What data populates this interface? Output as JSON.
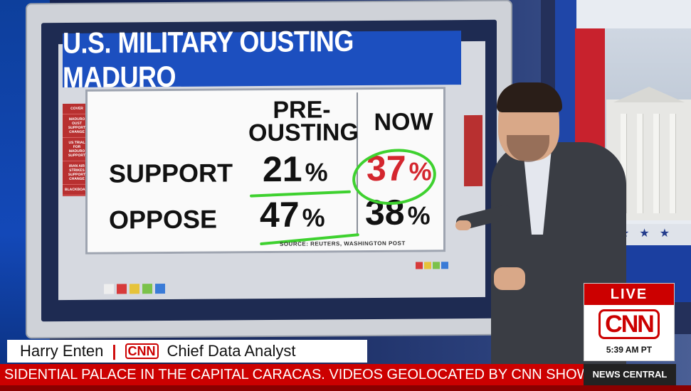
{
  "graphic": {
    "title": "U.S. MILITARY OUSTING MADURO",
    "col_pre_line1": "PRE-",
    "col_pre_line2": "OUSTING",
    "col_now": "NOW",
    "rows": [
      {
        "label": "SUPPORT",
        "pre": "21",
        "now": "37"
      },
      {
        "label": "OPPOSE",
        "pre": "47",
        "now": "38"
      }
    ],
    "pct": "%",
    "source": "SOURCE: REUTERS, WASHINGTON POST",
    "side_items": [
      "COVER",
      "MADURO OUST SUPPORT CHANGE",
      "US TRIAL FOR MADURO SUPPORT",
      "IRAN AIR STRIKES SUPPORT CHANGE",
      "BLACKBOARD"
    ]
  },
  "lower_third": {
    "name": "Harry Enten",
    "separator": "|",
    "network": "CNN",
    "role": "Chief Data Analyst"
  },
  "ticker": {
    "text": "SIDENTIAL PALACE IN THE CAPITAL CARACAS. VIDEOS GEOLOCATED BY CNN SHOW WHA",
    "show": "NEWS CENTRAL"
  },
  "bug": {
    "live": "LIVE",
    "logo": "CNN",
    "time": "5:39 AM PT"
  },
  "colors": {
    "cnn_red": "#cc0000",
    "title_blue": "#1c4fbf",
    "highlight_red": "#d4262e",
    "annotation_green": "#3ed12f"
  }
}
